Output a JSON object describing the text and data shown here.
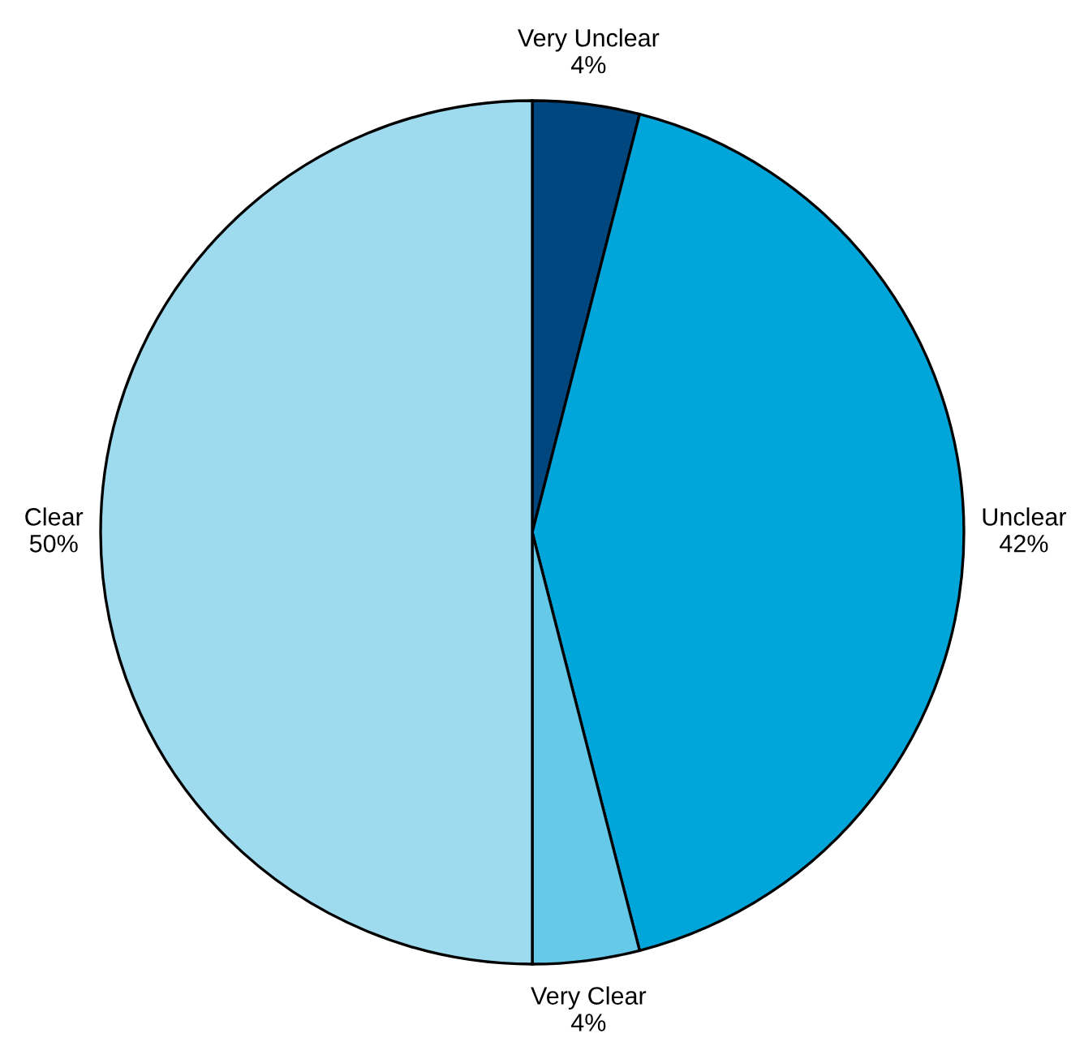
{
  "chart_data": {
    "type": "pie",
    "categories": [
      "Very Unclear",
      "Unclear",
      "Very Clear",
      "Clear"
    ],
    "values": [
      4,
      42,
      4,
      50
    ],
    "value_labels": [
      "4%",
      "42%",
      "4%",
      "50%"
    ],
    "colors": [
      "#00477f",
      "#00a5da",
      "#66c9e8",
      "#9fdbef"
    ]
  }
}
